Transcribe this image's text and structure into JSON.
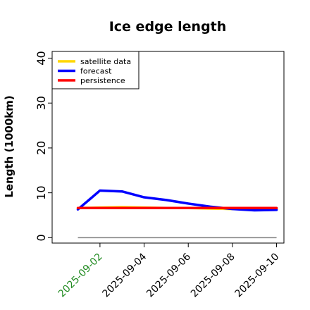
{
  "chart_data": {
    "type": "line",
    "title": "Ice edge length",
    "xlabel": "",
    "ylabel": "Length (1000km)",
    "x": [
      "2025-09-01",
      "2025-09-02",
      "2025-09-03",
      "2025-09-04",
      "2025-09-05",
      "2025-09-06",
      "2025-09-07",
      "2025-09-08",
      "2025-09-09",
      "2025-09-10"
    ],
    "x_tick_labels": [
      "2025-09-02",
      "2025-09-04",
      "2025-09-06",
      "2025-09-08",
      "2025-09-10"
    ],
    "x_tick_label_colors": [
      "#228b22",
      "#000000",
      "#000000",
      "#000000",
      "#000000"
    ],
    "xlim": [
      "2025-08-30T20:00",
      "2025-09-10T08:00"
    ],
    "ylim": [
      -1.2,
      41.5
    ],
    "y_ticks": [
      0,
      10,
      20,
      30,
      40
    ],
    "grid": false,
    "legend_position": "top-left",
    "series": [
      {
        "name": "satellite data",
        "color": "#ffd700",
        "values": [
          6.6,
          6.7,
          6.8,
          6.7,
          6.6,
          6.6,
          6.5,
          6.4,
          6.3,
          6.4
        ]
      },
      {
        "name": "forecast",
        "color": "#0000ff",
        "values": [
          6.3,
          10.5,
          10.3,
          9.0,
          8.4,
          7.6,
          6.9,
          6.4,
          6.1,
          6.2
        ]
      },
      {
        "name": "persistence",
        "color": "#ff0000",
        "values": [
          6.6,
          6.6,
          6.6,
          6.6,
          6.6,
          6.6,
          6.6,
          6.6,
          6.6,
          6.6
        ]
      }
    ],
    "reference_line": {
      "value": 0,
      "color": "#808080"
    }
  }
}
